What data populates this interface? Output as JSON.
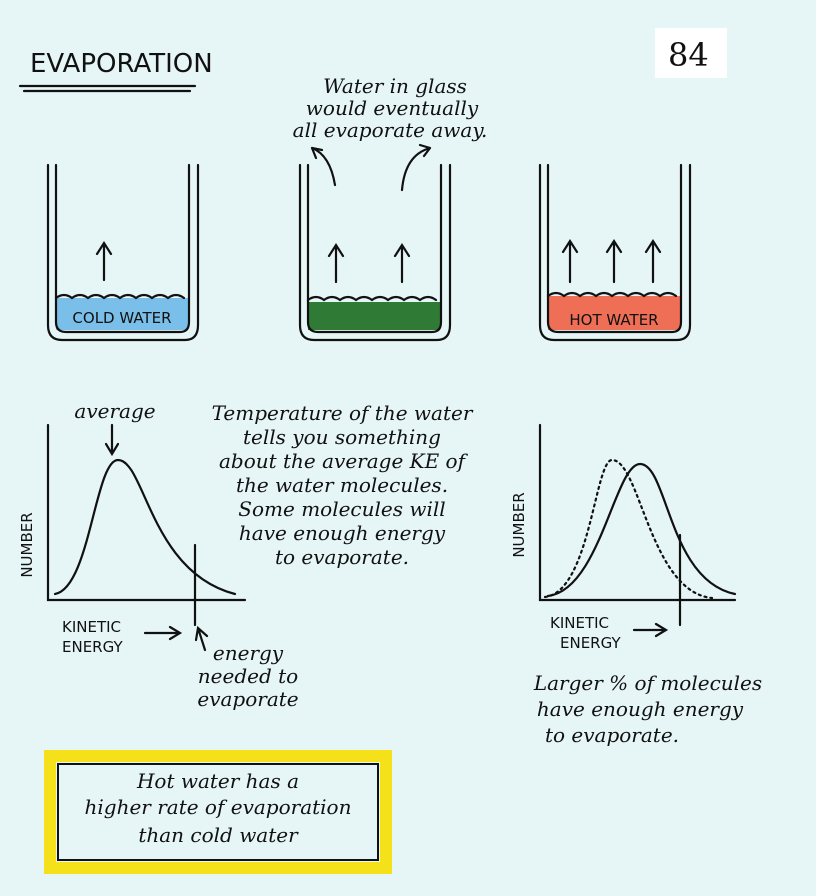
{
  "header": {
    "title": "EVAPORATION",
    "page_number": "84"
  },
  "glasses": {
    "note": [
      "Water in glass",
      "would eventually",
      "all evaporate away."
    ],
    "labels": [
      "COLD WATER",
      "HOT WATER"
    ]
  },
  "left_graph": {
    "peak_label": "average",
    "y_label": "NUMBER",
    "x_label": [
      "KINETIC",
      "ENERGY"
    ],
    "threshold_label": [
      "energy",
      "needed to",
      "evaporate"
    ]
  },
  "explanation": [
    "Temperature of the water",
    "tells you something",
    "about the average KE of",
    "the water molecules.",
    "Some molecules will",
    "have enough energy",
    "to evaporate."
  ],
  "right_graph": {
    "y_label": "NUMBER",
    "x_label": [
      "KINETIC",
      "ENERGY"
    ],
    "caption": [
      "Larger % of molecules",
      "have enough energy",
      "to evaporate."
    ]
  },
  "conclusion": [
    "Hot water has a",
    "higher rate of evaporation",
    "than cold water"
  ]
}
